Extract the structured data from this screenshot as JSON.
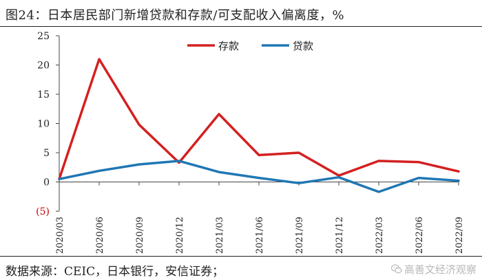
{
  "header": {
    "title": "图24：日本居民部门新增贷款和存款/可支配收入偏离度，%"
  },
  "footer": {
    "source": "数据来源：CEIC，日本银行，安信证券；",
    "watermark": "高善文经济观察"
  },
  "chart_data": {
    "type": "line",
    "categories": [
      "2020/03",
      "2020/06",
      "2020/09",
      "2020/12",
      "2021/03",
      "2021/06",
      "2021/09",
      "2021/12",
      "2022/03",
      "2022/06",
      "2022/09"
    ],
    "y_ticks": [
      {
        "value": 25,
        "label": "25"
      },
      {
        "value": 20,
        "label": "20"
      },
      {
        "value": 15,
        "label": "15"
      },
      {
        "value": 10,
        "label": "10"
      },
      {
        "value": 5,
        "label": "5"
      },
      {
        "value": 0,
        "label": "0"
      },
      {
        "value": -5,
        "label": "(5)"
      }
    ],
    "ylim": [
      -5,
      25
    ],
    "negative_tick_color": "#c00000",
    "legend_position": "top-center",
    "grid": false,
    "series": [
      {
        "name": "存款",
        "color": "#d42020",
        "values": [
          0.5,
          21.0,
          9.8,
          3.3,
          11.6,
          4.6,
          5.0,
          1.1,
          3.6,
          3.4,
          1.8
        ]
      },
      {
        "name": "贷款",
        "color": "#1f77b4",
        "values": [
          0.5,
          1.9,
          3.0,
          3.6,
          1.7,
          0.7,
          -0.2,
          0.8,
          -1.7,
          0.7,
          0.2
        ]
      }
    ]
  }
}
